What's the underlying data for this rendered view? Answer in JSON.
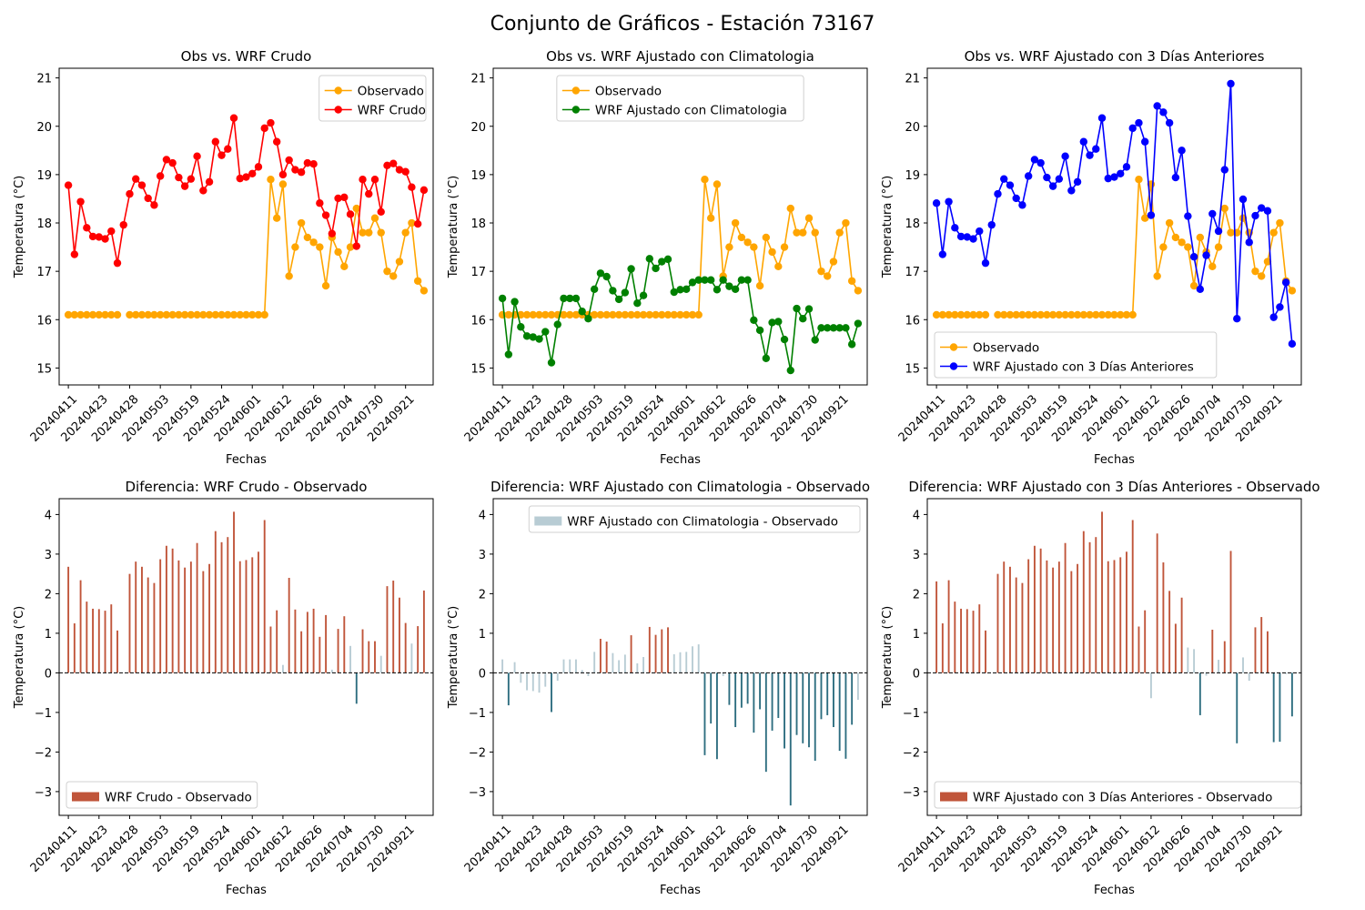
{
  "suptitle": "Conjunto de Gráficos - Estación 73167",
  "colors": {
    "observed": "#ffa500",
    "wrf_crudo": "#ff0000",
    "wrf_clim": "#008000",
    "wrf_3d": "#0000ff",
    "diff_pos": "#c0553a",
    "diff_neg": "#2e6e80",
    "diff_near_zero": "#b8ccd4"
  },
  "chart_data": [
    {
      "type": "line",
      "title": "Obs vs. WRF Crudo",
      "xlabel": "Fechas",
      "ylabel": "Temperatura (°C)",
      "ylim": [
        14.65,
        21.2
      ],
      "yticks": [
        15,
        16,
        17,
        18,
        19,
        20,
        21
      ],
      "xticklabels": [
        "20240411",
        "20240423",
        "20240428",
        "20240503",
        "20240519",
        "20240524",
        "20240601",
        "20240612",
        "20240626",
        "20240704",
        "20240730",
        "20240921"
      ],
      "legend": "top-right",
      "series": [
        {
          "name": "Observado",
          "color": "#ffa500",
          "values": [
            16.1,
            16.1,
            16.1,
            16.1,
            16.1,
            16.1,
            16.1,
            16.1,
            16.1,
            null,
            16.1,
            16.1,
            16.1,
            16.1,
            16.1,
            16.1,
            16.1,
            16.1,
            16.1,
            16.1,
            16.1,
            16.1,
            16.1,
            16.1,
            16.1,
            16.1,
            16.1,
            16.1,
            16.1,
            16.1,
            16.1,
            16.1,
            16.1,
            18.9,
            18.1,
            18.8,
            16.9,
            17.5,
            18.0,
            17.7,
            17.6,
            17.5,
            16.7,
            17.7,
            17.4,
            17.1,
            17.5,
            18.3,
            17.8,
            17.8,
            18.1,
            17.8,
            17.0,
            16.9,
            17.2,
            17.8,
            18.0,
            16.8,
            16.6
          ]
        },
        {
          "name": "WRF Crudo",
          "color": "#ff0000",
          "values": [
            18.78,
            17.35,
            18.44,
            17.9,
            17.72,
            17.71,
            17.67,
            17.83,
            17.17,
            17.96,
            18.6,
            18.91,
            18.78,
            18.51,
            18.37,
            18.97,
            19.31,
            19.24,
            18.94,
            18.76,
            18.91,
            19.38,
            18.67,
            18.85,
            19.68,
            19.4,
            19.53,
            20.17,
            18.92,
            18.95,
            19.02,
            19.16,
            19.96,
            20.07,
            19.68,
            19.0,
            19.3,
            19.1,
            19.05,
            19.24,
            19.22,
            18.41,
            18.16,
            17.78,
            18.51,
            18.53,
            18.18,
            17.52,
            18.9,
            18.6,
            18.9,
            18.23,
            19.19,
            19.23,
            19.1,
            19.06,
            18.74,
            17.98,
            18.68
          ]
        }
      ]
    },
    {
      "type": "line",
      "title": "Obs vs. WRF Ajustado con Climatologia",
      "xlabel": "Fechas",
      "ylabel": "Temperatura (°C)",
      "ylim": [
        14.65,
        21.2
      ],
      "yticks": [
        15,
        16,
        17,
        18,
        19,
        20,
        21
      ],
      "xticklabels": [
        "20240411",
        "20240423",
        "20240428",
        "20240503",
        "20240519",
        "20240524",
        "20240601",
        "20240612",
        "20240626",
        "20240704",
        "20240730",
        "20240921"
      ],
      "legend": "top-center",
      "series": [
        {
          "name": "Observado",
          "color": "#ffa500",
          "values": [
            16.1,
            16.1,
            16.1,
            16.1,
            16.1,
            16.1,
            16.1,
            16.1,
            16.1,
            16.1,
            16.1,
            16.1,
            16.1,
            16.1,
            16.1,
            16.1,
            16.1,
            16.1,
            16.1,
            16.1,
            16.1,
            16.1,
            16.1,
            16.1,
            16.1,
            16.1,
            16.1,
            16.1,
            16.1,
            16.1,
            16.1,
            16.1,
            16.1,
            18.9,
            18.1,
            18.8,
            16.9,
            17.5,
            18.0,
            17.7,
            17.6,
            17.5,
            16.7,
            17.7,
            17.4,
            17.1,
            17.5,
            18.3,
            17.8,
            17.8,
            18.1,
            17.8,
            17.0,
            16.9,
            17.2,
            17.8,
            18.0,
            16.8,
            16.6
          ]
        },
        {
          "name": "WRF Ajustado con Climatologia",
          "color": "#008000",
          "values": [
            16.44,
            15.28,
            16.37,
            15.85,
            15.66,
            15.64,
            15.6,
            15.75,
            15.11,
            15.9,
            16.44,
            16.44,
            16.44,
            16.17,
            16.02,
            16.63,
            16.96,
            16.89,
            16.6,
            16.42,
            16.56,
            17.05,
            16.34,
            16.5,
            17.26,
            17.06,
            17.2,
            17.25,
            16.57,
            16.62,
            16.63,
            16.77,
            16.82,
            16.82,
            16.82,
            16.62,
            16.82,
            16.69,
            16.63,
            16.82,
            16.82,
            15.99,
            15.78,
            15.2,
            15.94,
            15.96,
            15.59,
            14.95,
            16.23,
            16.02,
            16.22,
            15.58,
            15.83,
            15.83,
            15.83,
            15.83,
            15.83,
            15.49,
            15.92
          ]
        }
      ]
    },
    {
      "type": "line",
      "title": "Obs vs. WRF Ajustado con 3 Días Anteriores",
      "xlabel": "Fechas",
      "ylabel": "Temperatura (°C)",
      "ylim": [
        14.65,
        21.2
      ],
      "yticks": [
        15,
        16,
        17,
        18,
        19,
        20,
        21
      ],
      "xticklabels": [
        "20240411",
        "20240423",
        "20240428",
        "20240503",
        "20240519",
        "20240524",
        "20240601",
        "20240612",
        "20240626",
        "20240704",
        "20240730",
        "20240921"
      ],
      "legend": "bottom-left",
      "series": [
        {
          "name": "Observado",
          "color": "#ffa500",
          "values": [
            16.1,
            16.1,
            16.1,
            16.1,
            16.1,
            16.1,
            16.1,
            16.1,
            16.1,
            null,
            16.1,
            16.1,
            16.1,
            16.1,
            16.1,
            16.1,
            16.1,
            16.1,
            16.1,
            16.1,
            16.1,
            16.1,
            16.1,
            16.1,
            16.1,
            16.1,
            16.1,
            16.1,
            16.1,
            16.1,
            16.1,
            16.1,
            16.1,
            18.9,
            18.1,
            18.8,
            16.9,
            17.5,
            18.0,
            17.7,
            17.6,
            17.5,
            16.7,
            17.7,
            17.4,
            17.1,
            17.5,
            18.3,
            17.8,
            17.8,
            18.1,
            17.8,
            17.0,
            16.9,
            17.2,
            17.8,
            18.0,
            16.8,
            16.6
          ]
        },
        {
          "name": "WRF Ajustado con 3 Días Anteriores",
          "color": "#0000ff",
          "values": [
            18.41,
            17.35,
            18.44,
            17.9,
            17.72,
            17.71,
            17.67,
            17.83,
            17.17,
            17.96,
            18.6,
            18.91,
            18.78,
            18.51,
            18.37,
            18.97,
            19.31,
            19.24,
            18.94,
            18.76,
            18.91,
            19.38,
            18.67,
            18.85,
            19.68,
            19.4,
            19.53,
            20.17,
            18.92,
            18.95,
            19.02,
            19.16,
            19.96,
            20.07,
            19.68,
            18.16,
            20.42,
            20.29,
            20.07,
            18.94,
            19.5,
            18.14,
            17.3,
            16.63,
            17.33,
            18.19,
            17.83,
            19.1,
            20.88,
            16.02,
            18.49,
            17.6,
            18.15,
            18.31,
            18.25,
            16.05,
            16.26,
            16.77,
            15.5
          ]
        }
      ]
    },
    {
      "type": "bar",
      "title": "Diferencia: WRF Crudo - Observado",
      "xlabel": "Fechas",
      "ylabel": "Temperatura (°C)",
      "ylim": [
        -3.6,
        4.4
      ],
      "yticks": [
        -3,
        -2,
        -1,
        0,
        1,
        2,
        3,
        4
      ],
      "xticklabels": [
        "20240411",
        "20240423",
        "20240428",
        "20240503",
        "20240519",
        "20240524",
        "20240601",
        "20240612",
        "20240626",
        "20240704",
        "20240730",
        "20240921"
      ],
      "legend": "bottom-left",
      "series": [
        {
          "name": "WRF Crudo - Observado",
          "values": [
            2.68,
            1.25,
            2.34,
            1.8,
            1.62,
            1.61,
            1.57,
            1.73,
            1.07,
            null,
            2.5,
            2.81,
            2.68,
            2.41,
            2.27,
            2.87,
            3.21,
            3.14,
            2.84,
            2.66,
            2.81,
            3.28,
            2.57,
            2.75,
            3.58,
            3.3,
            3.43,
            4.07,
            2.82,
            2.85,
            2.92,
            3.06,
            3.86,
            1.17,
            1.58,
            0.2,
            2.4,
            1.6,
            1.05,
            1.54,
            1.62,
            0.91,
            1.46,
            0.08,
            1.11,
            1.43,
            0.68,
            -0.78,
            1.1,
            0.8,
            0.8,
            0.43,
            2.19,
            2.33,
            1.9,
            1.26,
            0.74,
            1.18,
            2.08
          ]
        }
      ]
    },
    {
      "type": "bar",
      "title": "Diferencia: WRF Ajustado con Climatologia - Observado",
      "xlabel": "Fechas",
      "ylabel": "Temperatura (°C)",
      "ylim": [
        -3.6,
        4.4
      ],
      "yticks": [
        -3,
        -2,
        -1,
        0,
        1,
        2,
        3,
        4
      ],
      "xticklabels": [
        "20240411",
        "20240423",
        "20240428",
        "20240503",
        "20240519",
        "20240524",
        "20240601",
        "20240612",
        "20240626",
        "20240704",
        "20240730",
        "20240921"
      ],
      "legend": "top-right",
      "series": [
        {
          "name": "WRF Ajustado con Climatologia - Observado",
          "values": [
            0.34,
            -0.82,
            0.27,
            -0.25,
            -0.44,
            -0.46,
            -0.5,
            -0.35,
            -0.99,
            -0.2,
            0.34,
            0.34,
            0.34,
            0.07,
            -0.08,
            0.53,
            0.86,
            0.79,
            0.5,
            0.32,
            0.46,
            0.95,
            0.24,
            0.4,
            1.16,
            0.96,
            1.1,
            1.15,
            0.47,
            0.52,
            0.53,
            0.67,
            0.72,
            -2.08,
            -1.28,
            -2.18,
            -0.08,
            -0.81,
            -1.37,
            -0.88,
            -0.78,
            -1.51,
            -0.92,
            -2.5,
            -1.46,
            -1.14,
            -1.91,
            -3.35,
            -1.57,
            -1.78,
            -1.88,
            -2.22,
            -1.17,
            -1.07,
            -1.37,
            -1.97,
            -2.17,
            -1.31,
            -0.68
          ]
        }
      ]
    },
    {
      "type": "bar",
      "title": "Diferencia: WRF Ajustado con 3 Días Anteriores - Observado",
      "xlabel": "Fechas",
      "ylabel": "Temperatura (°C)",
      "ylim": [
        -3.6,
        4.4
      ],
      "yticks": [
        -3,
        -2,
        -1,
        0,
        1,
        2,
        3,
        4
      ],
      "xticklabels": [
        "20240411",
        "20240423",
        "20240428",
        "20240503",
        "20240519",
        "20240524",
        "20240601",
        "20240612",
        "20240626",
        "20240704",
        "20240730",
        "20240921"
      ],
      "legend": "bottom-left",
      "series": [
        {
          "name": "WRF Ajustado con 3 Días Anteriores - Observado",
          "values": [
            2.31,
            1.25,
            2.34,
            1.8,
            1.62,
            1.61,
            1.57,
            1.73,
            1.07,
            null,
            2.5,
            2.81,
            2.68,
            2.41,
            2.27,
            2.87,
            3.21,
            3.14,
            2.84,
            2.66,
            2.81,
            3.28,
            2.57,
            2.75,
            3.58,
            3.3,
            3.43,
            4.07,
            2.82,
            2.85,
            2.92,
            3.06,
            3.86,
            1.17,
            1.58,
            -0.64,
            3.52,
            2.79,
            2.07,
            1.24,
            1.9,
            0.64,
            0.6,
            -1.07,
            -0.07,
            1.09,
            0.33,
            0.8,
            3.08,
            -1.78,
            0.39,
            -0.2,
            1.15,
            1.41,
            1.05,
            -1.75,
            -1.74,
            -0.03,
            -1.1
          ]
        }
      ]
    }
  ]
}
